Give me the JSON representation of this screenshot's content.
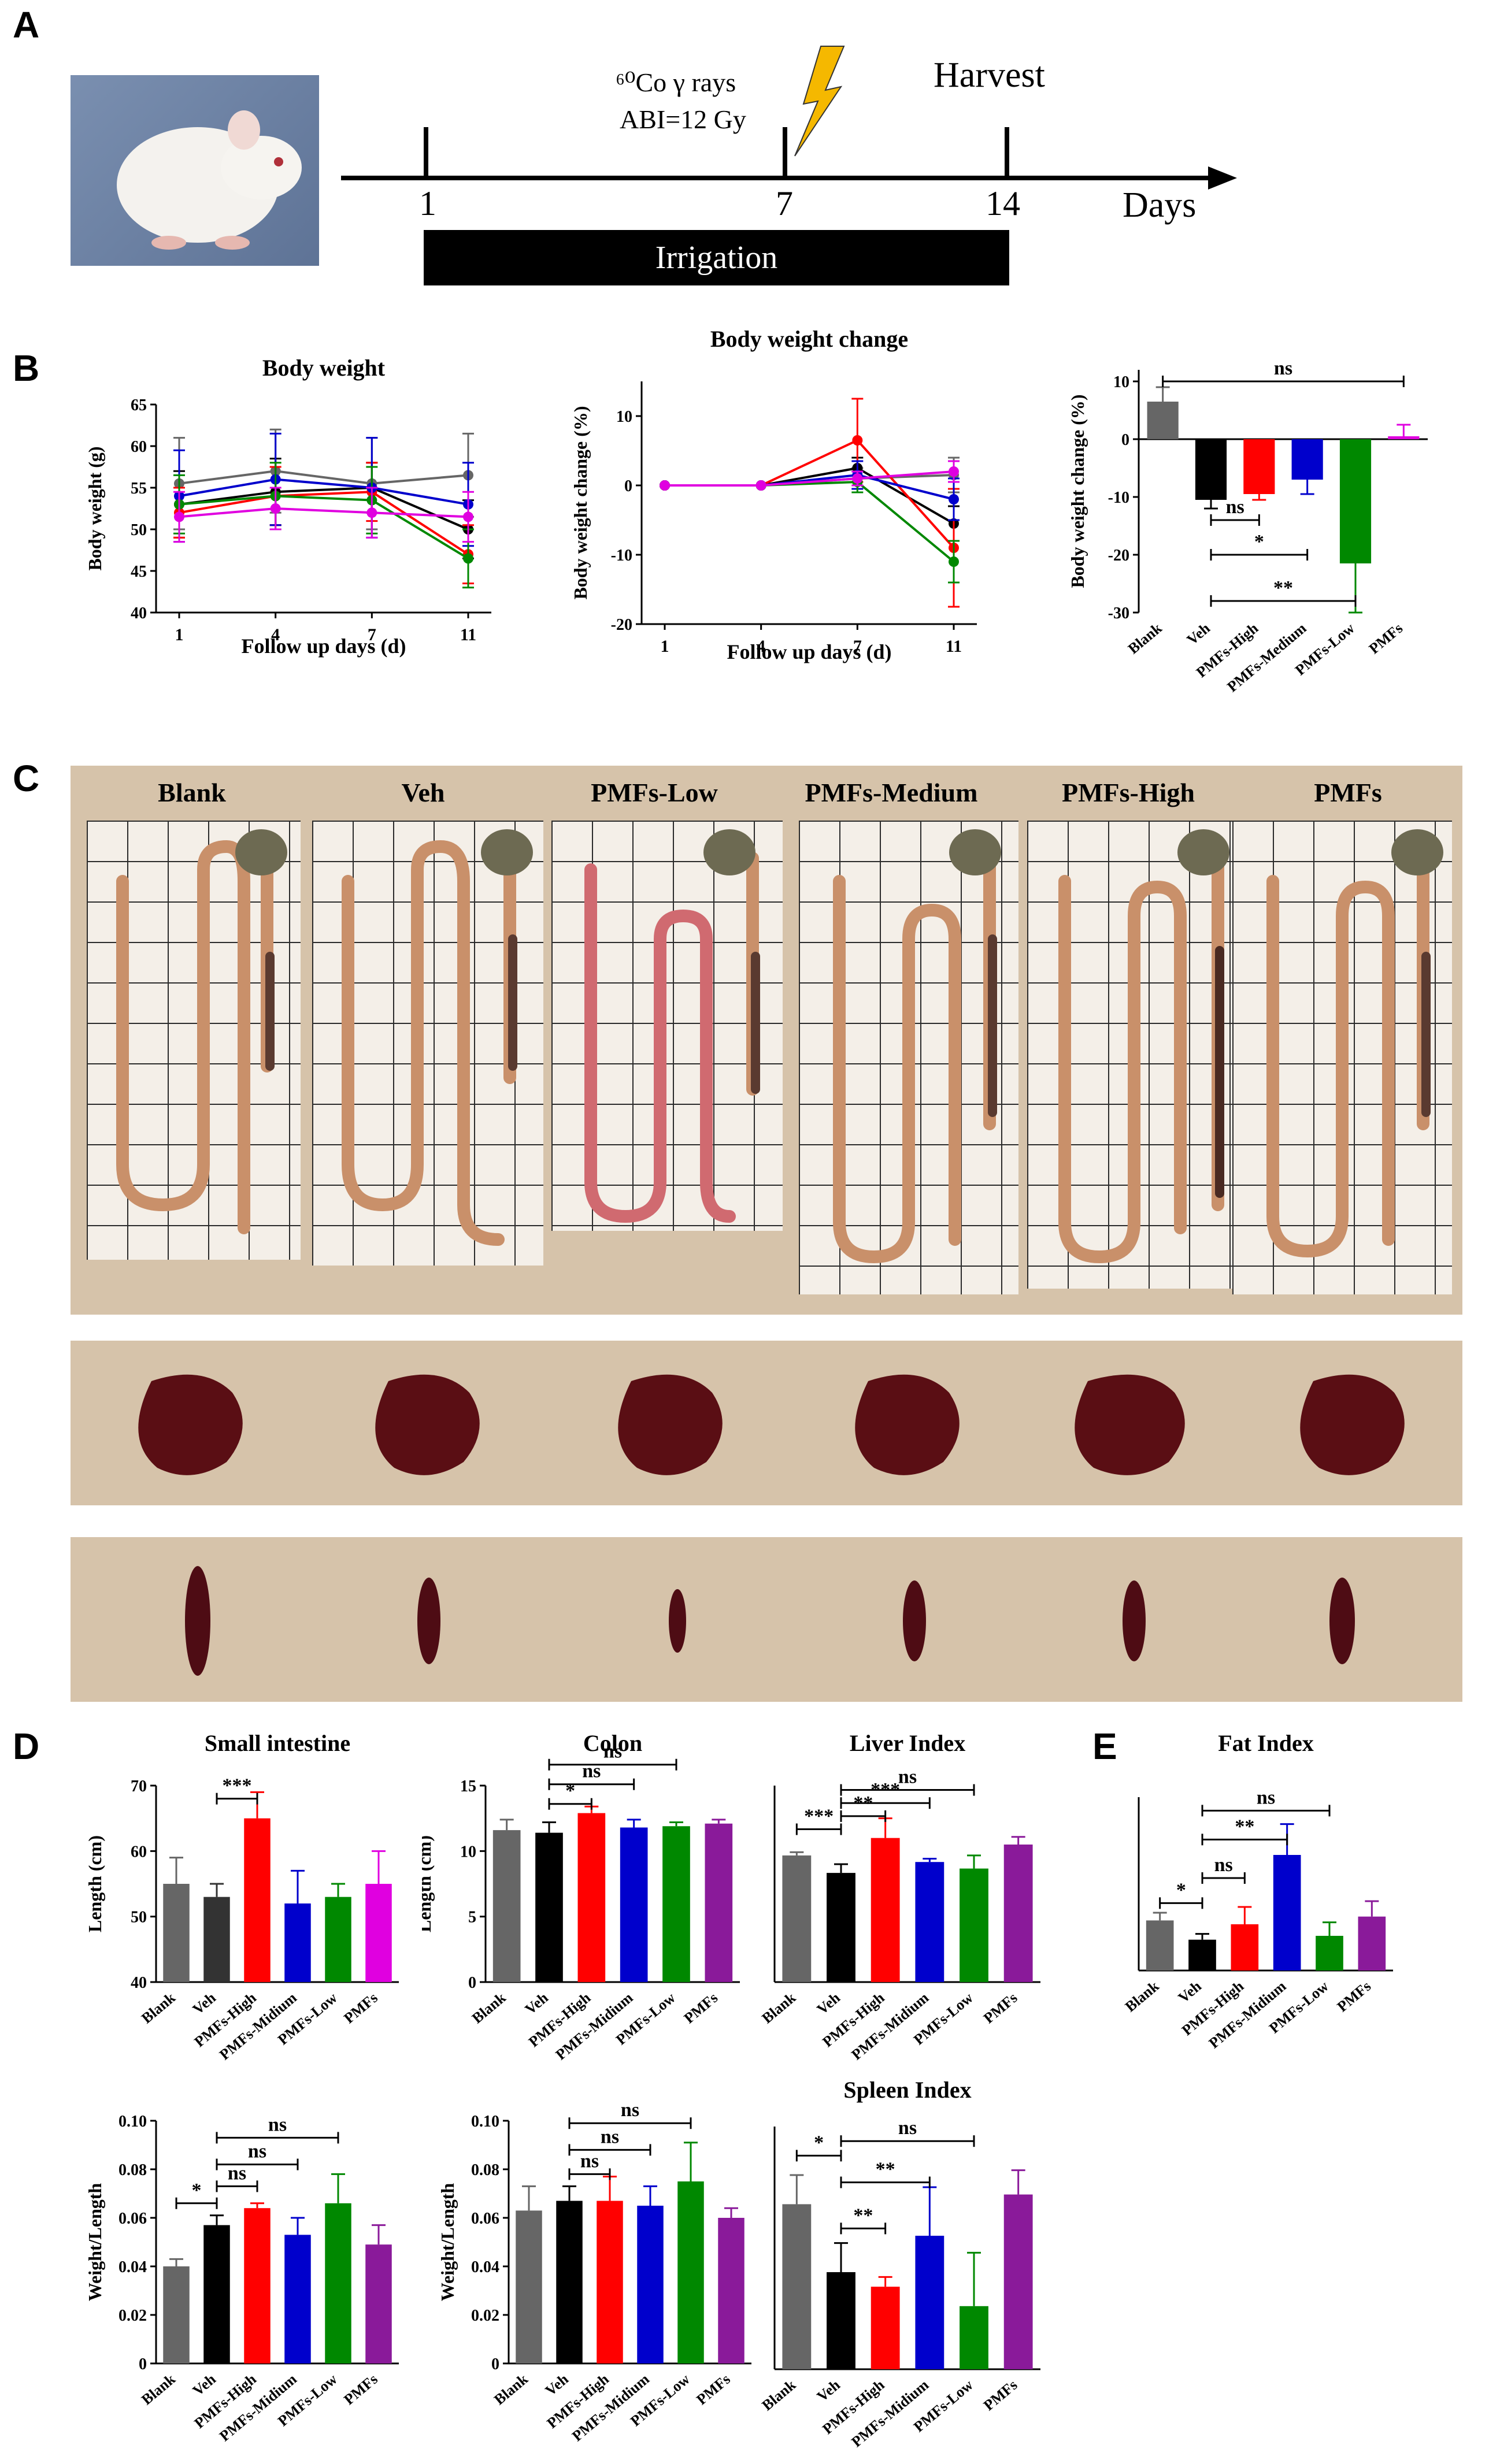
{
  "panels": {
    "a": "A",
    "b": "B",
    "c": "C",
    "d": "D",
    "e": "E"
  },
  "timeline": {
    "rays": "⁶⁰Co γ rays",
    "abi": "ABI=12 Gy",
    "harvest": "Harvest",
    "days_label": "Days",
    "ticks": [
      "1",
      "7",
      "14"
    ],
    "irrigation": "Irrigation"
  },
  "photo_labels": [
    "Blank",
    "Veh",
    "PMFs-Low",
    "PMFs-Medium",
    "PMFs-High",
    "PMFs"
  ],
  "colors": {
    "Blank": "#666666",
    "Veh": "#000000",
    "PMFs-High": "#ff0000",
    "PMFs-Midium": "#0000cc",
    "PMFs-Low": "#008800",
    "PMFs": "#8a1a9a",
    "PMFs-magenta": "#e000e0"
  },
  "chart_data": [
    {
      "id": "body-weight",
      "type": "line",
      "title": "Body weight",
      "xlabel": "Follow up days (d)",
      "ylabel": "Body weight (g)",
      "x": [
        1,
        4,
        7,
        11
      ],
      "ylim": [
        40,
        65
      ],
      "yticks": [
        40,
        45,
        50,
        55,
        60,
        65
      ],
      "series": [
        {
          "name": "Blank",
          "color": "#666666",
          "values": [
            55.5,
            57.0,
            55.5,
            56.5
          ],
          "err": [
            5.5,
            5.0,
            5.5,
            5.0
          ]
        },
        {
          "name": "Veh",
          "color": "#000000",
          "values": [
            53.0,
            54.5,
            55.0,
            50.0
          ],
          "err": [
            4.0,
            4.0,
            3.0,
            3.5
          ]
        },
        {
          "name": "PMFs-High",
          "color": "#ff0000",
          "values": [
            52.0,
            54.0,
            54.5,
            47.0
          ],
          "err": [
            3.0,
            3.5,
            3.5,
            3.5
          ]
        },
        {
          "name": "PMFs-Midium",
          "color": "#0000cc",
          "values": [
            54.0,
            56.0,
            55.0,
            53.0
          ],
          "err": [
            5.5,
            5.5,
            6.0,
            5.0
          ]
        },
        {
          "name": "PMFs-Low",
          "color": "#008800",
          "values": [
            53.0,
            54.0,
            53.5,
            46.5
          ],
          "err": [
            3.5,
            4.0,
            4.0,
            3.5
          ]
        },
        {
          "name": "PMFs",
          "color": "#e000e0",
          "values": [
            51.5,
            52.5,
            52.0,
            51.5
          ],
          "err": [
            3.0,
            2.5,
            3.0,
            3.0
          ]
        }
      ]
    },
    {
      "id": "body-weight-change",
      "type": "line",
      "title": "Body weight change",
      "xlabel": "Follow up days (d)",
      "ylabel": "Body weight change (%)",
      "x": [
        1,
        4,
        7,
        11
      ],
      "ylim": [
        -20,
        15
      ],
      "yticks": [
        -20,
        -10,
        0,
        10
      ],
      "series": [
        {
          "name": "Blank",
          "color": "#666666",
          "values": [
            0,
            0,
            1.0,
            1.5
          ],
          "err": [
            0,
            0,
            1.5,
            2.5
          ]
        },
        {
          "name": "Veh",
          "color": "#000000",
          "values": [
            0,
            0,
            2.5,
            -5.5
          ],
          "err": [
            0,
            0,
            1.5,
            2.5
          ]
        },
        {
          "name": "PMFs-High",
          "color": "#ff0000",
          "values": [
            0,
            0,
            6.5,
            -9.0
          ],
          "err": [
            0,
            0,
            6.0,
            8.5
          ]
        },
        {
          "name": "PMFs-Midium",
          "color": "#0000cc",
          "values": [
            0,
            0,
            1.5,
            -2.0
          ],
          "err": [
            0,
            0,
            2.0,
            3.0
          ]
        },
        {
          "name": "PMFs-Low",
          "color": "#008800",
          "values": [
            0,
            0,
            0.5,
            -11.0
          ],
          "err": [
            0,
            0,
            1.5,
            3.0
          ]
        },
        {
          "name": "PMFs",
          "color": "#e000e0",
          "values": [
            0,
            0,
            1.0,
            2.0
          ],
          "err": [
            0,
            0,
            1.0,
            1.5
          ]
        }
      ]
    },
    {
      "id": "body-weight-change-bar",
      "type": "bar",
      "ylabel": "Body weight change (%)",
      "categories": [
        "Blank",
        "Veh",
        "PMFs-High",
        "PMFs-Medium",
        "PMFs-Low",
        "PMFs"
      ],
      "values": [
        6.5,
        -10.5,
        -9.5,
        -7.0,
        -21.5,
        0.5
      ],
      "err": [
        2.5,
        1.5,
        1.0,
        2.5,
        8.5,
        2.0
      ],
      "colors": [
        "#666666",
        "#000000",
        "#ff0000",
        "#0000cc",
        "#008800",
        "#e000e0"
      ],
      "ylim": [
        -30,
        12
      ],
      "yticks": [
        -30,
        -20,
        -10,
        0,
        10
      ],
      "sig": [
        {
          "from": 0,
          "to": 5,
          "label": "ns",
          "y": 10
        },
        {
          "from": 1,
          "to": 2,
          "label": "ns",
          "y": -14
        },
        {
          "from": 1,
          "to": 3,
          "label": "*",
          "y": -20
        },
        {
          "from": 1,
          "to": 4,
          "label": "**",
          "y": -28
        }
      ]
    },
    {
      "id": "small-intestine",
      "type": "bar",
      "title": "Small intestine",
      "ylabel": "Length (cm)",
      "categories": [
        "Blank",
        "Veh",
        "PMFs-High",
        "PMFs-Midium",
        "PMFs-Low",
        "PMFs"
      ],
      "values": [
        55,
        53,
        65,
        52,
        53,
        55
      ],
      "err": [
        4,
        2,
        4,
        5,
        2,
        5
      ],
      "colors": [
        "#666666",
        "#333333",
        "#ff0000",
        "#0000cc",
        "#008800",
        "#e000e0"
      ],
      "ylim": [
        40,
        70
      ],
      "yticks": [
        40,
        50,
        60,
        70
      ],
      "sig": [
        {
          "from": 1,
          "to": 2,
          "label": "***",
          "y": 68
        }
      ]
    },
    {
      "id": "colon",
      "type": "bar",
      "title": "Colon",
      "ylabel": "Length (cm)",
      "categories": [
        "Blank",
        "Veh",
        "PMFs-High",
        "PMFs-Midium",
        "PMFs-Low",
        "PMFs"
      ],
      "values": [
        11.6,
        11.4,
        12.9,
        11.8,
        11.9,
        12.1
      ],
      "err": [
        0.8,
        0.8,
        0.5,
        0.6,
        0.3,
        0.3
      ],
      "colors": [
        "#666666",
        "#000000",
        "#ff0000",
        "#0000cc",
        "#008800",
        "#8a1a9a"
      ],
      "ylim": [
        0,
        15
      ],
      "yticks": [
        0,
        5,
        10,
        15
      ],
      "sig": [
        {
          "from": 1,
          "to": 2,
          "label": "*",
          "y": 13.6
        },
        {
          "from": 1,
          "to": 3,
          "label": "ns",
          "y": 15.1
        },
        {
          "from": 1,
          "to": 4,
          "label": "ns",
          "y": 16.6
        }
      ]
    },
    {
      "id": "liver-index",
      "type": "bar",
      "title": "Liver Index",
      "categories": [
        "Blank",
        "Veh",
        "PMFs-High",
        "PMFs-Midium",
        "PMFs-Low",
        "PMFs"
      ],
      "values": [
        5.8,
        5.0,
        6.6,
        5.5,
        5.2,
        6.3
      ],
      "err": [
        0.15,
        0.4,
        0.9,
        0.15,
        0.6,
        0.35
      ],
      "colors": [
        "#666666",
        "#000000",
        "#ff0000",
        "#0000cc",
        "#008800",
        "#8a1a9a"
      ],
      "ylim": [
        0,
        9
      ],
      "yticks": [],
      "sig": [
        {
          "from": 0,
          "to": 1,
          "label": "***",
          "y": 7.0
        },
        {
          "from": 1,
          "to": 2,
          "label": "**",
          "y": 7.6
        },
        {
          "from": 1,
          "to": 3,
          "label": "***",
          "y": 8.2
        },
        {
          "from": 1,
          "to": 4,
          "label": "ns",
          "y": 8.8
        }
      ]
    },
    {
      "id": "fat-index",
      "type": "bar",
      "title": "Fat Index",
      "categories": [
        "Blank",
        "Veh",
        "PMFs-High",
        "PMFs-Midium",
        "PMFs-Low",
        "PMFs"
      ],
      "values": [
        2.6,
        1.6,
        2.4,
        6.0,
        1.8,
        2.8
      ],
      "err": [
        0.4,
        0.3,
        0.9,
        1.6,
        0.7,
        0.8
      ],
      "colors": [
        "#666666",
        "#000000",
        "#ff0000",
        "#0000cc",
        "#008800",
        "#8a1a9a"
      ],
      "ylim": [
        0,
        9
      ],
      "yticks": [],
      "sig": [
        {
          "from": 0,
          "to": 1,
          "label": "*",
          "y": 3.5
        },
        {
          "from": 1,
          "to": 2,
          "label": "ns",
          "y": 4.8
        },
        {
          "from": 1,
          "to": 3,
          "label": "**",
          "y": 6.8
        },
        {
          "from": 1,
          "to": 4,
          "label": "ns",
          "y": 8.3
        }
      ]
    },
    {
      "id": "spleen-a",
      "type": "bar",
      "ylabel": "Weight/Length",
      "categories": [
        "Blank",
        "Veh",
        "PMFs-High",
        "PMFs-Midium",
        "PMFs-Low",
        "PMFs"
      ],
      "values": [
        0.04,
        0.057,
        0.064,
        0.053,
        0.066,
        0.049
      ],
      "err": [
        0.003,
        0.004,
        0.002,
        0.007,
        0.012,
        0.008
      ],
      "colors": [
        "#666666",
        "#000000",
        "#ff0000",
        "#0000cc",
        "#008800",
        "#8a1a9a"
      ],
      "ylim": [
        0,
        0.1
      ],
      "yticks": [
        0.0,
        0.02,
        0.04,
        0.06,
        0.08,
        0.1
      ],
      "sig": [
        {
          "from": 0,
          "to": 1,
          "label": "*",
          "y": 0.066
        },
        {
          "from": 1,
          "to": 2,
          "label": "ns",
          "y": 0.073
        },
        {
          "from": 1,
          "to": 3,
          "label": "ns",
          "y": 0.082
        },
        {
          "from": 1,
          "to": 4,
          "label": "ns",
          "y": 0.093
        }
      ]
    },
    {
      "id": "spleen-b",
      "type": "bar",
      "ylabel": "Weight/Length",
      "categories": [
        "Blank",
        "Veh",
        "PMFs-High",
        "PMFs-Midium",
        "PMFs-Low",
        "PMFs"
      ],
      "values": [
        0.063,
        0.067,
        0.067,
        0.065,
        0.075,
        0.06
      ],
      "err": [
        0.01,
        0.006,
        0.01,
        0.008,
        0.016,
        0.004
      ],
      "colors": [
        "#666666",
        "#000000",
        "#ff0000",
        "#0000cc",
        "#008800",
        "#8a1a9a"
      ],
      "ylim": [
        0,
        0.1
      ],
      "yticks": [
        0.0,
        0.02,
        0.04,
        0.06,
        0.08,
        0.1
      ],
      "sig": [
        {
          "from": 1,
          "to": 2,
          "label": "ns",
          "y": 0.078
        },
        {
          "from": 1,
          "to": 3,
          "label": "ns",
          "y": 0.088
        },
        {
          "from": 1,
          "to": 4,
          "label": "ns",
          "y": 0.099
        }
      ]
    },
    {
      "id": "spleen-index",
      "type": "bar",
      "title": "Spleen Index",
      "categories": [
        "Blank",
        "Veh",
        "PMFs-High",
        "PMFs-Midium",
        "PMFs-Low",
        "PMFs"
      ],
      "values": [
        0.068,
        0.04,
        0.034,
        0.055,
        0.026,
        0.072
      ],
      "err": [
        0.012,
        0.012,
        0.004,
        0.02,
        0.022,
        0.01
      ],
      "colors": [
        "#666666",
        "#000000",
        "#ff0000",
        "#0000cc",
        "#008800",
        "#8a1a9a"
      ],
      "ylim": [
        0,
        0.1
      ],
      "yticks": [],
      "sig": [
        {
          "from": 0,
          "to": 1,
          "label": "*",
          "y": 0.088
        },
        {
          "from": 1,
          "to": 2,
          "label": "**",
          "y": 0.058
        },
        {
          "from": 1,
          "to": 3,
          "label": "**",
          "y": 0.077
        },
        {
          "from": 1,
          "to": 4,
          "label": "ns",
          "y": 0.094
        }
      ]
    }
  ]
}
